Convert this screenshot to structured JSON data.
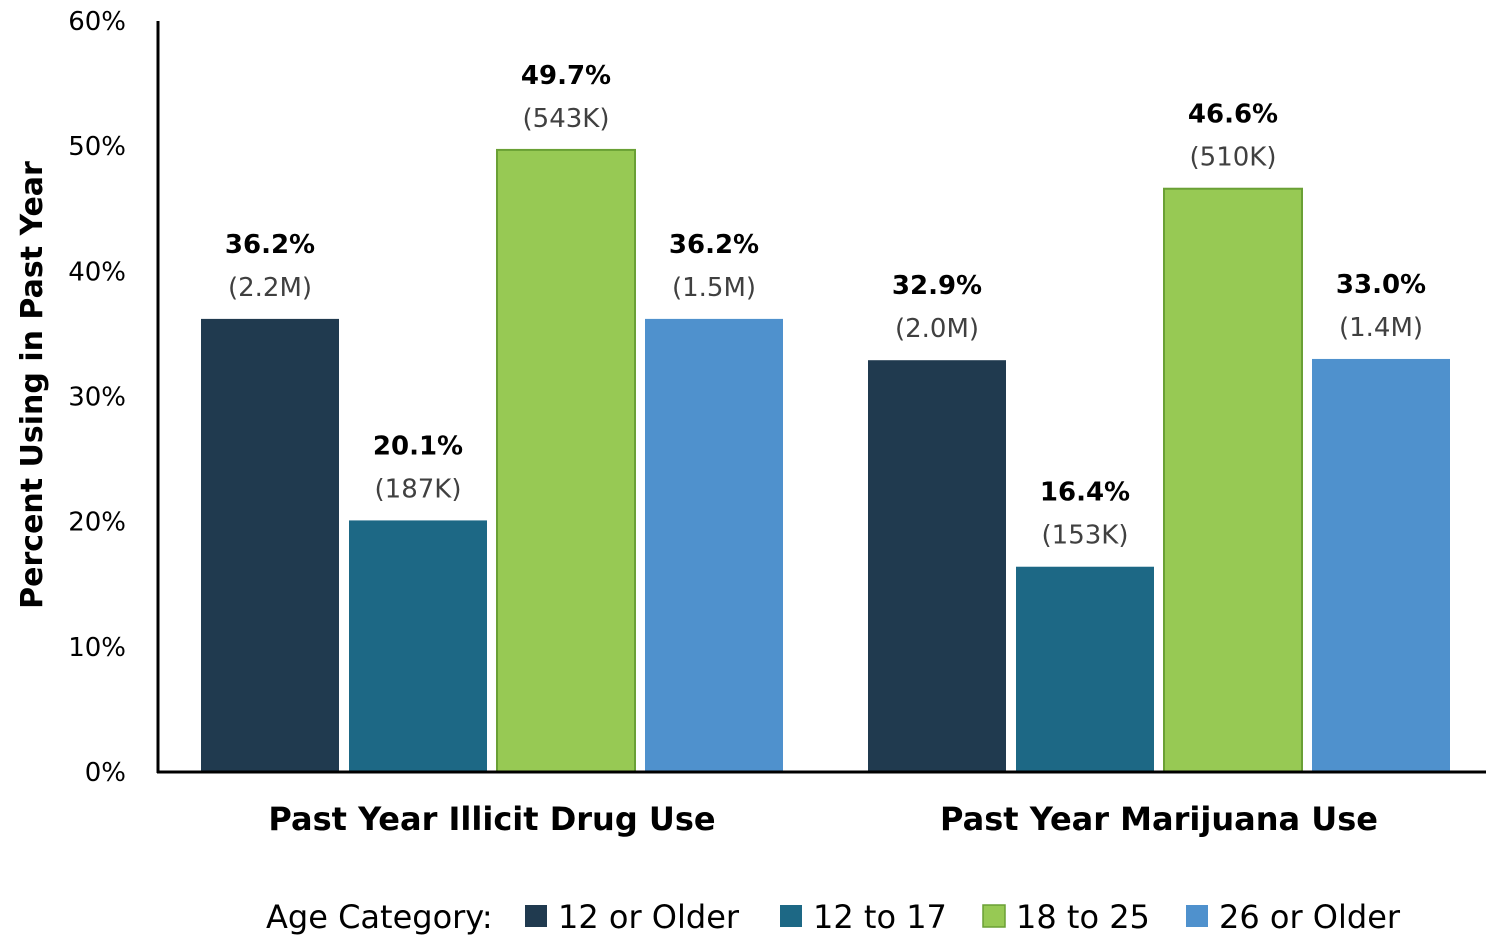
{
  "chart_data": {
    "type": "bar",
    "ylabel": "Percent Using in Past Year",
    "ylim": [
      0,
      60
    ],
    "y_ticks": [
      "0%",
      "10%",
      "20%",
      "30%",
      "40%",
      "50%",
      "60%"
    ],
    "y_tick_values": [
      0,
      10,
      20,
      30,
      40,
      50,
      60
    ],
    "categories": [
      "Past Year Illicit Drug Use",
      "Past Year Marijuana Use"
    ],
    "legend_title": "Age Category:",
    "legend_position": "bottom",
    "grid": false,
    "series": [
      {
        "name": "12 or Older",
        "color": "#203a4f",
        "values": [
          36.2,
          32.9
        ],
        "value_labels": [
          "36.2%",
          "32.9%"
        ],
        "count_labels": [
          "(2.2M)",
          "(2.0M)"
        ]
      },
      {
        "name": "12 to 17",
        "color": "#1d6885",
        "values": [
          20.1,
          16.4
        ],
        "value_labels": [
          "20.1%",
          "16.4%"
        ],
        "count_labels": [
          "(187K)",
          "(153K)"
        ]
      },
      {
        "name": "18 to 25",
        "color": "#97c954",
        "values": [
          49.7,
          46.6
        ],
        "value_labels": [
          "49.7%",
          "46.6%"
        ],
        "count_labels": [
          "(543K)",
          "(510K)"
        ]
      },
      {
        "name": "26 or Older",
        "color": "#4f91cd",
        "values": [
          36.2,
          33.0
        ],
        "value_labels": [
          "36.2%",
          "33.0%"
        ],
        "count_labels": [
          "(1.5M)",
          "(1.4M)"
        ]
      }
    ]
  }
}
